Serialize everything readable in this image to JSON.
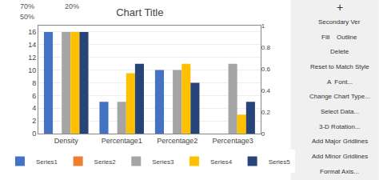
{
  "chart_data": {
    "type": "bar",
    "title": "Chart Title",
    "categories": [
      "Density",
      "Percentage1",
      "Percentage2",
      "Percentage3"
    ],
    "series": [
      {
        "name": "Series1",
        "color": "#4472C4",
        "values": [
          16,
          5,
          10,
          0
        ]
      },
      {
        "name": "Series2",
        "color": "#ED7D31",
        "values": [
          0,
          0,
          0,
          0
        ]
      },
      {
        "name": "Series3",
        "color": "#A5A5A5",
        "values": [
          16,
          5,
          10,
          11
        ]
      },
      {
        "name": "Series4",
        "color": "#FFC000",
        "values": [
          16,
          9.5,
          11,
          3
        ]
      },
      {
        "name": "Series5",
        "color": "#264478",
        "values": [
          16,
          11,
          8,
          5
        ]
      }
    ],
    "ylim": [
      0,
      17
    ],
    "yticks": [
      0,
      2,
      4,
      6,
      8,
      10,
      12,
      14,
      16
    ],
    "y2lim": [
      0,
      1
    ],
    "y2ticks": [
      0,
      0.2,
      0.4,
      0.6,
      0.8,
      1
    ],
    "grid": true,
    "legend": "bottom",
    "annotations": [
      "70%",
      "20%",
      "50%",
      "+",
      "Secondary Ver",
      "Fill    Outline",
      "Delete",
      "Reset to Match Style",
      "A  Font...",
      "Change Chart Type...",
      "Select Data...",
      "3-D Rotation...",
      "Add Major Gridlines",
      "Add Minor Gridlines",
      "Format Axis..."
    ]
  }
}
